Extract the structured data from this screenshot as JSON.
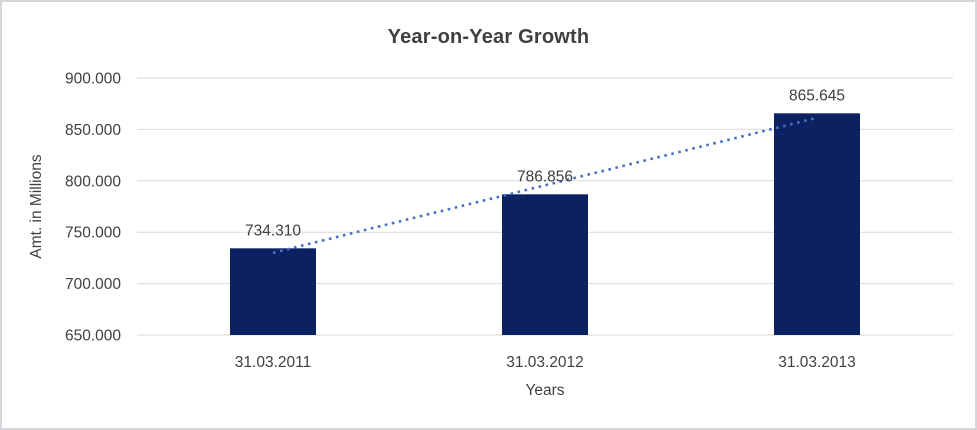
{
  "chart_data": {
    "type": "bar",
    "title": "Year-on-Year Growth",
    "categories": [
      "31.03.2011",
      "31.03.2012",
      "31.03.2013"
    ],
    "values": [
      734.31,
      786.856,
      865.645
    ],
    "value_labels": [
      "734.310",
      "786.856",
      "865.645"
    ],
    "xlabel": "Years",
    "ylabel": "Amt. in Millions",
    "ylim": [
      650,
      900
    ],
    "ytick_step": 50,
    "ytick_labels": [
      "650.000",
      "700.000",
      "750.000",
      "800.000",
      "850.000",
      "900.000"
    ],
    "grid": true,
    "legend": "none",
    "trendline": {
      "type": "linear",
      "style": "dotted"
    },
    "colors": {
      "bar": "#0b2161",
      "trendline": "#4472c4",
      "gridline": "#d9d9d9",
      "tick_text": "#404040",
      "title_text": "#3f3f3f",
      "border": "#d6d6da"
    }
  }
}
